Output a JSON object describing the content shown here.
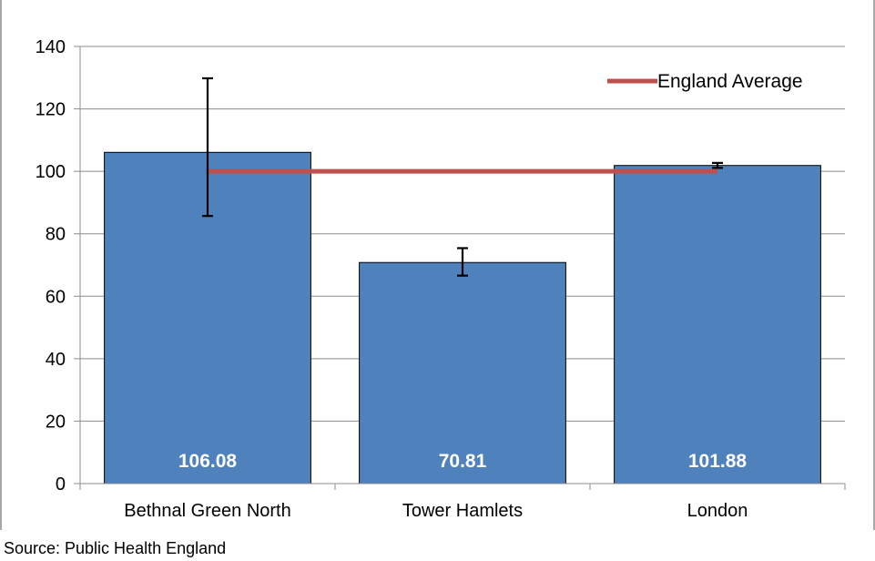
{
  "chart_data": {
    "type": "bar",
    "categories": [
      "Bethnal Green North",
      "Tower Hamlets",
      "London"
    ],
    "series": [
      {
        "values": [
          106.08,
          70.81,
          101.88
        ],
        "data_labels": [
          "106.08",
          "70.81",
          "101.88"
        ],
        "error_low": [
          85.7,
          66.6,
          101.1
        ],
        "error_high": [
          129.8,
          75.4,
          102.7
        ],
        "color": "#4f81bd"
      }
    ],
    "reference_line": {
      "name": "England Average",
      "value": 100,
      "color": "#c0504d"
    },
    "ylim": [
      0,
      140
    ],
    "yticks": [
      0,
      20,
      40,
      60,
      80,
      100,
      120,
      140
    ],
    "grid": true,
    "legend_position": "top-right",
    "source_note": "Source: Public Health England"
  }
}
